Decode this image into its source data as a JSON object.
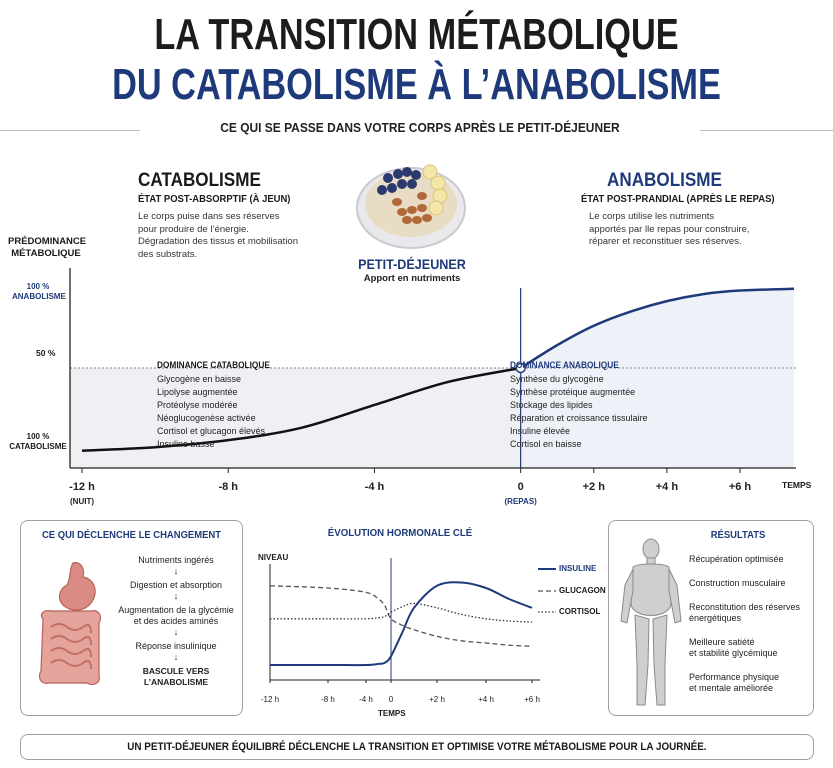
{
  "title": {
    "line1": "LA TRANSITION MÉTABOLIQUE",
    "line2": "DU CATABOLISME À L’ANABOLISME"
  },
  "subtitle": "CE QUI SE PASSE DANS VOTRE CORPS APRÈS LE PETIT-DÉJEUNER",
  "catabolism": {
    "heading": "CATABOLISME",
    "state": "ÉTAT POST-ABSORPTIF (À JEUN)",
    "desc": [
      "Le corps puise dans ses réserves",
      "pour produire de l’énergie.",
      "Dégradation des tissus et mobilisation",
      "des substrats."
    ]
  },
  "breakfast": {
    "label": "PETIT-DÉJEUNER",
    "sub": "Apport en nutriments"
  },
  "anabolism": {
    "heading": "ANABOLISME",
    "state": "ÉTAT POST-PRANDIAL (APRÈS LE REPAS)",
    "desc": [
      "Le corps utilise les nutriments",
      "apportés par lle repas pour construire,",
      "réparer et reconstituer ses réserves."
    ]
  },
  "main_chart": {
    "ylabel": [
      "PRÉDOMINANCE",
      "MÉTABOLIQUE"
    ],
    "y_top": [
      "100 %",
      "ANABOLISME"
    ],
    "y_mid": "50 %",
    "y_bot": [
      "100 %",
      "CATABOLISME"
    ],
    "x_ticks": [
      {
        "label": "-12 h",
        "sub": "(NUIT)",
        "value": -12
      },
      {
        "label": "-8 h",
        "sub": "",
        "value": -8
      },
      {
        "label": "-4 h",
        "sub": "",
        "value": -4
      },
      {
        "label": "0",
        "sub": "(REPAS)",
        "value": 0
      },
      {
        "label": "+2 h",
        "sub": "",
        "value": 2
      },
      {
        "label": "+4 h",
        "sub": "",
        "value": 4
      },
      {
        "label": "+6 h",
        "sub": "",
        "value": 6
      }
    ],
    "x_axis_label": "TEMPS",
    "cat_dominance": {
      "title": "DOMINANCE CATABOLIQUE",
      "items": [
        "Glycogène en baisse",
        "Lipolyse augmentée",
        "Protéolyse modérée",
        "Néoglucogenèse activée",
        "Cortisol et glucagon élevés",
        "Insuline basse"
      ]
    },
    "ana_dominance": {
      "title": "DOMINANCE ANABOLIQUE",
      "items": [
        "Synthèse du glycogène",
        "Synthèse protéique augmentée",
        "Stockage des lipides",
        "Réparation et croissance tissulaire",
        "Insuline élevée",
        "Cortisol en baisse"
      ]
    }
  },
  "chart_data": {
    "type": "line",
    "xlabel": "TEMPS",
    "ylabel": "PRÉDOMINANCE MÉTABOLIQUE",
    "xlim": [
      -12,
      7.5
    ],
    "ylim": [
      0,
      100
    ],
    "series": [
      {
        "values": [
          {
            "x": -12,
            "y": 3
          },
          {
            "x": -10,
            "y": 5
          },
          {
            "x": -8,
            "y": 9
          },
          {
            "x": -6,
            "y": 16
          },
          {
            "x": -4,
            "y": 29
          },
          {
            "x": -2,
            "y": 42
          },
          {
            "x": 0,
            "y": 50
          },
          {
            "x": 1,
            "y": 63
          },
          {
            "x": 2,
            "y": 74
          },
          {
            "x": 3,
            "y": 82
          },
          {
            "x": 4,
            "y": 88
          },
          {
            "x": 5,
            "y": 92
          },
          {
            "x": 6,
            "y": 94
          },
          {
            "x": 7.5,
            "y": 95
          }
        ]
      }
    ]
  },
  "trigger_box": {
    "title": "CE QUI DÉCLENCHE LE CHANGEMENT",
    "steps": [
      "Nutriments ingérés",
      "Digestion et absorption",
      "Augmentation de la glycémie\net des acides aminés",
      "Réponse insulinique"
    ],
    "final": "BASCULE VERS L’ANABOLISME",
    "arrow": "↓"
  },
  "hormone_chart": {
    "title": "ÉVOLUTION HORMONALE CLÉ",
    "ylabel": "NIVEAU",
    "xlabel": "TEMPS",
    "x_ticks": [
      "-12 h",
      "-8 h",
      "-4 h",
      "0",
      "+2 h",
      "+4 h",
      "+6 h"
    ],
    "legend": [
      "INSULINE",
      "GLUCAGON",
      "CORTISOL"
    ],
    "color": "#1f3a7a"
  },
  "hormone_data": {
    "x": [
      -12,
      -8,
      -4,
      -2,
      -1,
      0,
      0.5,
      1,
      2,
      3,
      4,
      5,
      6
    ],
    "insuline": [
      10,
      10,
      10,
      11,
      12,
      18,
      40,
      62,
      82,
      85,
      80,
      70,
      62
    ],
    "glucagon": [
      82,
      80,
      76,
      70,
      64,
      52,
      46,
      42,
      36,
      32,
      30,
      28,
      27
    ],
    "cortisol": [
      52,
      52,
      52,
      53,
      54,
      58,
      63,
      66,
      62,
      56,
      52,
      50,
      49
    ]
  },
  "results_box": {
    "title": "RÉSULTATS",
    "items": [
      "Récupération optimisée",
      "Construction musculaire",
      "Reconstitution des réserves\nénergétiques",
      "Meilleure satiété\net stabilité glycémique",
      "Performance physique\net mentale améliorée"
    ]
  },
  "footer": "UN PETIT-DÉJEUNER ÉQUILIBRÉ DÉCLENCHE LA TRANSITION ET OPTIMISE VOTRE MÉTABOLISME POUR LA JOURNÉE."
}
